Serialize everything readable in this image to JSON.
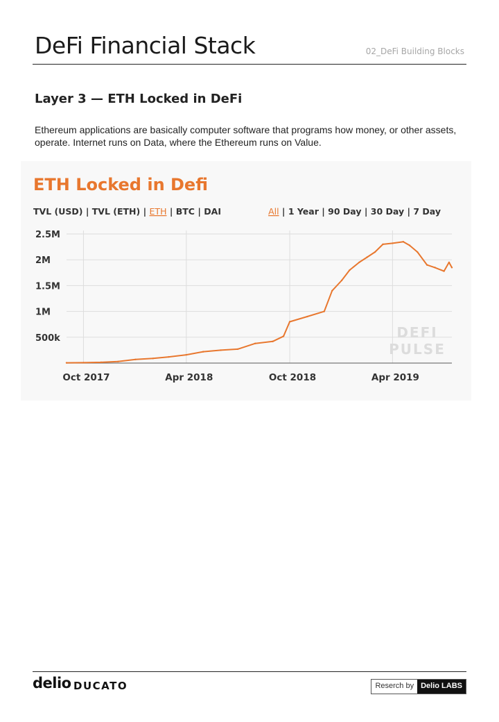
{
  "header": {
    "title": "DeFi Financial Stack",
    "section": "02_DeFi Building Blocks"
  },
  "subtitle": "Layer 3 — ETH Locked in DeFi",
  "body_text": "Ethereum applications are basically computer software that programs how money, or other assets, operate.  Internet runs on Data, where the Ethereum runs on Value.",
  "chart_data": {
    "type": "line",
    "title": "ETH Locked in Defi",
    "metric_tabs": [
      "TVL (USD)",
      "TVL (ETH)",
      "ETH",
      "BTC",
      "DAI"
    ],
    "metric_selected": "ETH",
    "range_tabs": [
      "All",
      "1 Year",
      "90 Day",
      "30 Day",
      "7 Day"
    ],
    "range_selected": "All",
    "x_tick_labels": [
      "Oct 2017",
      "Apr 2018",
      "Oct 2018",
      "Apr 2019"
    ],
    "y_tick_labels": [
      "500k",
      "1M",
      "1.5M",
      "2M",
      "2.5M"
    ],
    "y_tick_values": [
      500000,
      1000000,
      1500000,
      2000000,
      2500000
    ],
    "ylim": [
      0,
      2500000
    ],
    "xlim": [
      "2017-09-01",
      "2019-07-15"
    ],
    "grid": true,
    "watermark": "DEFI PULSE",
    "accent_color": "#e8772e",
    "series": [
      {
        "x": [
          "2017-09-01",
          "2017-10-01",
          "2017-11-01",
          "2017-12-01",
          "2018-01-01",
          "2018-02-01",
          "2018-03-01",
          "2018-04-01",
          "2018-05-01",
          "2018-06-01",
          "2018-07-01",
          "2018-08-01",
          "2018-09-01",
          "2018-09-20",
          "2018-10-01",
          "2018-11-01",
          "2018-12-01",
          "2018-12-15",
          "2019-01-01",
          "2019-01-15",
          "2019-02-01",
          "2019-02-15",
          "2019-03-01",
          "2019-03-15",
          "2019-04-01",
          "2019-04-20",
          "2019-05-01",
          "2019-05-15",
          "2019-06-01",
          "2019-06-15",
          "2019-07-01",
          "2019-07-10",
          "2019-07-15"
        ],
        "values": [
          5000,
          8000,
          15000,
          30000,
          70000,
          90000,
          120000,
          160000,
          220000,
          250000,
          270000,
          380000,
          420000,
          520000,
          800000,
          900000,
          1000000,
          1400000,
          1600000,
          1800000,
          1950000,
          2050000,
          2150000,
          2300000,
          2320000,
          2350000,
          2280000,
          2150000,
          1900000,
          1850000,
          1780000,
          1950000,
          1850000
        ]
      }
    ]
  },
  "footer": {
    "brand": "delio",
    "product": "DUCATO",
    "research_label": "Reserch by",
    "research_brand": "Delio LABS"
  }
}
